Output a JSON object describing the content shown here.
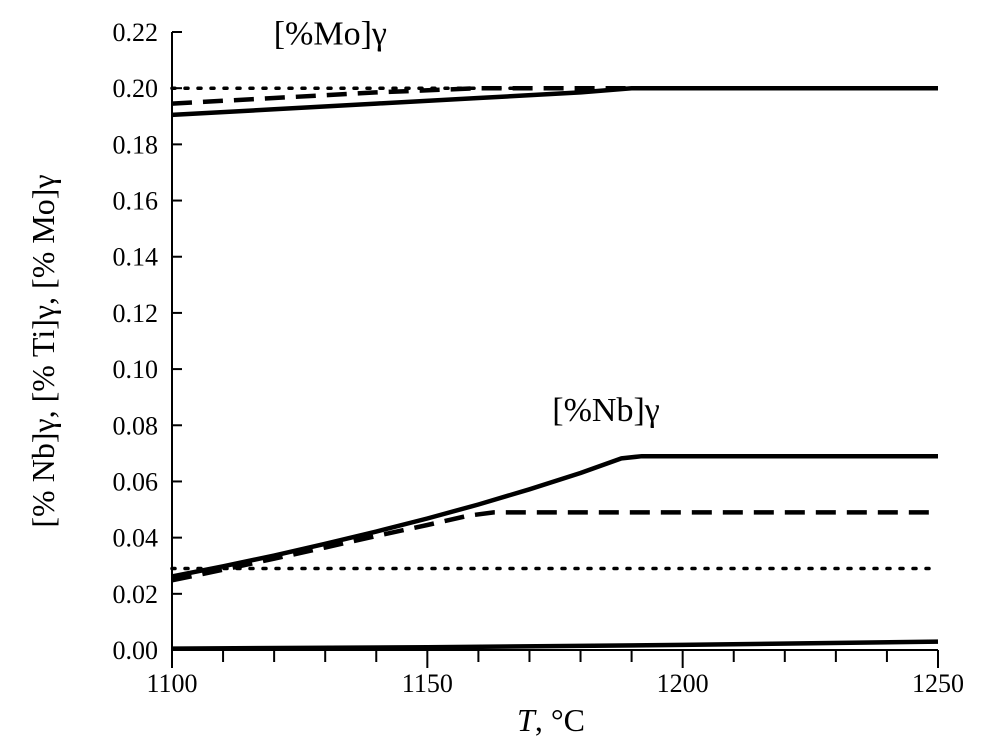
{
  "chart_data": {
    "type": "line",
    "title": "",
    "xlabel": {
      "italic": "T",
      "rest": ", °C"
    },
    "ylabel": "[% Nb]γ, [% Ti]γ, [% Mo]γ",
    "xlim": [
      1100,
      1250
    ],
    "ylim": [
      0.0,
      0.22
    ],
    "xticks": [
      1100,
      1150,
      1200,
      1250
    ],
    "xticks_minor_step": 10,
    "yticks": [
      0.0,
      0.02,
      0.04,
      0.06,
      0.08,
      0.1,
      0.12,
      0.14,
      0.16,
      0.18,
      0.2,
      0.22
    ],
    "ytick_labels": [
      "0.00",
      "0.02",
      "0.04",
      "0.06",
      "0.08",
      "0.10",
      "0.12",
      "0.14",
      "0.16",
      "0.18",
      "0.20",
      "0.22"
    ],
    "grid": false,
    "annotations": [
      {
        "text": "[%Mo]γ",
        "x": 1131,
        "y": 0.2155
      },
      {
        "text": "[%Nb]γ",
        "x": 1185,
        "y": 0.0815
      }
    ],
    "series": [
      {
        "name": "Mo (solid)",
        "style": "solid",
        "x": [
          1100,
          1120,
          1140,
          1160,
          1180,
          1190,
          1200,
          1250
        ],
        "y": [
          0.1905,
          0.1925,
          0.1945,
          0.1965,
          0.1985,
          0.2,
          0.2,
          0.2
        ]
      },
      {
        "name": "Mo (dashed)",
        "style": "dashed",
        "x": [
          1100,
          1120,
          1140,
          1160,
          1180,
          1190
        ],
        "y": [
          0.1945,
          0.1965,
          0.1985,
          0.2,
          0.2,
          0.2
        ]
      },
      {
        "name": "Mo (dotted)",
        "style": "dotted",
        "x": [
          1100,
          1170
        ],
        "y": [
          0.2,
          0.2
        ]
      },
      {
        "name": "Nb (solid)",
        "style": "solid",
        "x": [
          1100,
          1110,
          1120,
          1130,
          1140,
          1150,
          1160,
          1170,
          1180,
          1188,
          1192,
          1200,
          1250
        ],
        "y": [
          0.0262,
          0.0298,
          0.0336,
          0.0378,
          0.0422,
          0.0468,
          0.0518,
          0.0572,
          0.063,
          0.0682,
          0.069,
          0.069,
          0.069
        ]
      },
      {
        "name": "Nb (dashed)",
        "style": "dashed",
        "x": [
          1100,
          1110,
          1120,
          1130,
          1140,
          1150,
          1158,
          1163,
          1250
        ],
        "y": [
          0.0248,
          0.0286,
          0.0325,
          0.0365,
          0.0406,
          0.0445,
          0.0478,
          0.049,
          0.049
        ]
      },
      {
        "name": "Nb (dotted)",
        "style": "dotted",
        "x": [
          1100,
          1250
        ],
        "y": [
          0.029,
          0.029
        ]
      },
      {
        "name": "Ti (solid)",
        "style": "solid",
        "x": [
          1100,
          1150,
          1200,
          1250
        ],
        "y": [
          0.0005,
          0.001,
          0.0018,
          0.003
        ]
      }
    ]
  }
}
